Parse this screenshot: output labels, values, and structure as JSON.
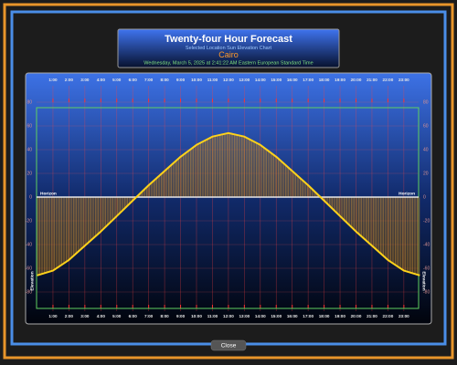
{
  "header": {
    "title": "Twenty-four Hour Forecast",
    "subtitle": "Selected Location Sun Elevation Chart",
    "location": "Cairo",
    "timestamp": "Wednesday, March 5, 2025 at 2:41:22 AM Eastern European Standard Time"
  },
  "chart_data": {
    "type": "area",
    "x": [
      0,
      1,
      2,
      3,
      4,
      5,
      6,
      7,
      8,
      9,
      10,
      11,
      12,
      13,
      14,
      15,
      16,
      17,
      18,
      19,
      20,
      21,
      22,
      23,
      24
    ],
    "values": [
      -66,
      -62,
      -53,
      -41,
      -29,
      -16,
      -3,
      10,
      22,
      34,
      44,
      51,
      54,
      51,
      44,
      34,
      22,
      10,
      -3,
      -16,
      -29,
      -41,
      -53,
      -62,
      -66
    ],
    "color": "#ffd21a",
    "xlim": [
      0,
      24
    ],
    "ylim": [
      -90,
      90
    ],
    "xticks": [
      {
        "value": 1,
        "label": "1:00"
      },
      {
        "value": 2,
        "label": "2:00"
      },
      {
        "value": 3,
        "label": "3:00"
      },
      {
        "value": 4,
        "label": "4:00"
      },
      {
        "value": 5,
        "label": "5:00"
      },
      {
        "value": 6,
        "label": "6:00"
      },
      {
        "value": 7,
        "label": "7:00"
      },
      {
        "value": 8,
        "label": "8:00"
      },
      {
        "value": 9,
        "label": "9:00"
      },
      {
        "value": 10,
        "label": "10:00"
      },
      {
        "value": 11,
        "label": "11:00"
      },
      {
        "value": 12,
        "label": "12:00"
      },
      {
        "value": 13,
        "label": "13:00"
      },
      {
        "value": 14,
        "label": "14:00"
      },
      {
        "value": 15,
        "label": "15:00"
      },
      {
        "value": 16,
        "label": "16:00"
      },
      {
        "value": 17,
        "label": "17:00"
      },
      {
        "value": 18,
        "label": "18:00"
      },
      {
        "value": 19,
        "label": "19:00"
      },
      {
        "value": 20,
        "label": "20:00"
      },
      {
        "value": 21,
        "label": "21:00"
      },
      {
        "value": 22,
        "label": "22:00"
      },
      {
        "value": 23,
        "label": "23:00"
      }
    ],
    "yticks": [
      -80,
      -60,
      -40,
      -20,
      0,
      20,
      40,
      60,
      80
    ],
    "grid": true,
    "reference_label": "Horizon",
    "y_label": "Elevation"
  },
  "button": {
    "label": "Close"
  }
}
